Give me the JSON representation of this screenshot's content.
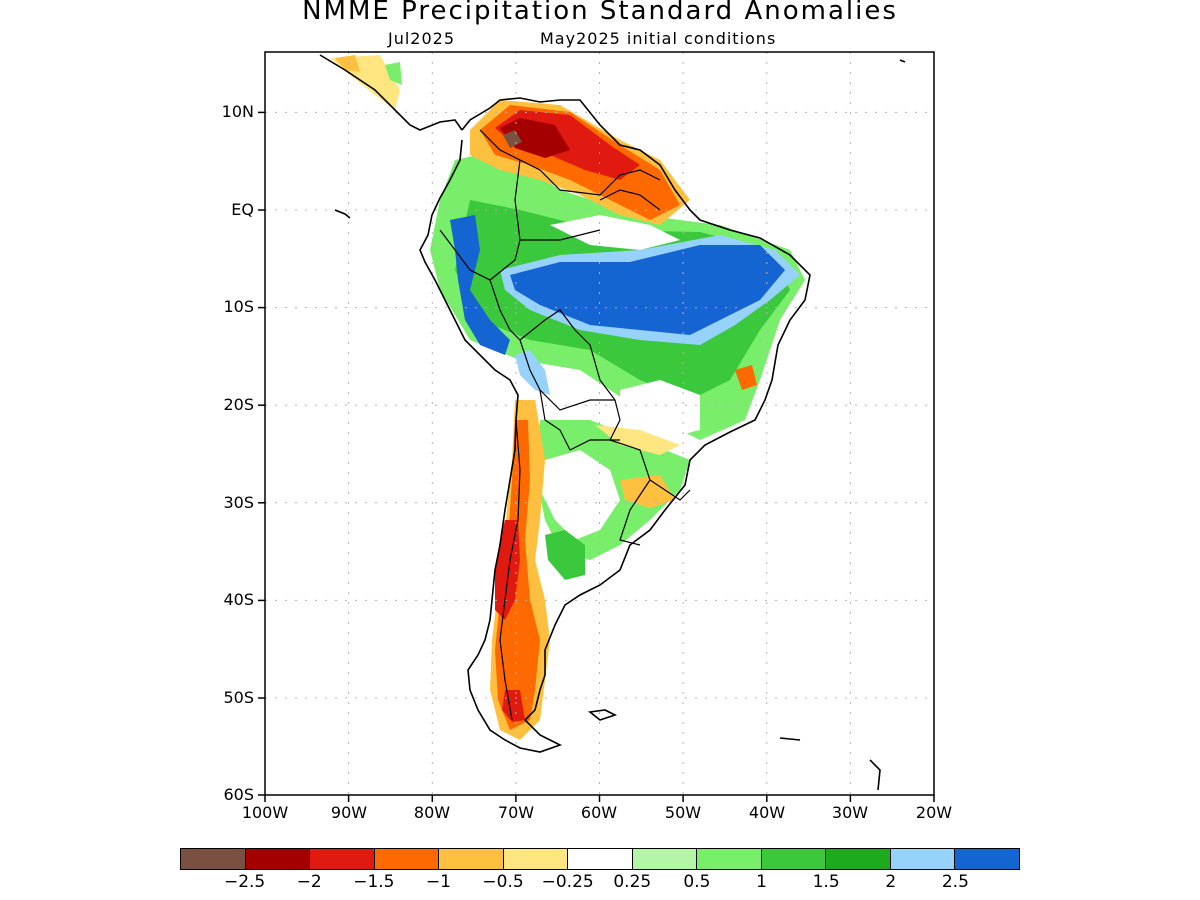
{
  "title": "NMME Precipitation Standard Anomalies",
  "subtitle_left": "Jul2025",
  "subtitle_right": "May2025 initial conditions",
  "lat_labels": [
    "10N",
    "EQ",
    "10S",
    "20S",
    "30S",
    "40S",
    "50S",
    "60S"
  ],
  "lon_labels": [
    "100W",
    "90W",
    "80W",
    "70W",
    "60W",
    "50W",
    "40W",
    "30W",
    "20W"
  ],
  "colorbar": {
    "colors": [
      "#7a5040",
      "#a50000",
      "#e01a10",
      "#ff6a00",
      "#ffc040",
      "#ffe680",
      "#ffffff",
      "#b4f5a8",
      "#78ee6a",
      "#3cc83c",
      "#1eaa1e",
      "#96d2fa",
      "#1464d2"
    ],
    "labels": [
      "−2.5",
      "−2",
      "−1.5",
      "−1",
      "−0.5",
      "−0.25",
      "0.25",
      "0.5",
      "1",
      "1.5",
      "2",
      "2.5"
    ]
  },
  "colors": {
    "coastline": "#000000",
    "gridline": "#b4b4b4",
    "frame": "#000000"
  }
}
